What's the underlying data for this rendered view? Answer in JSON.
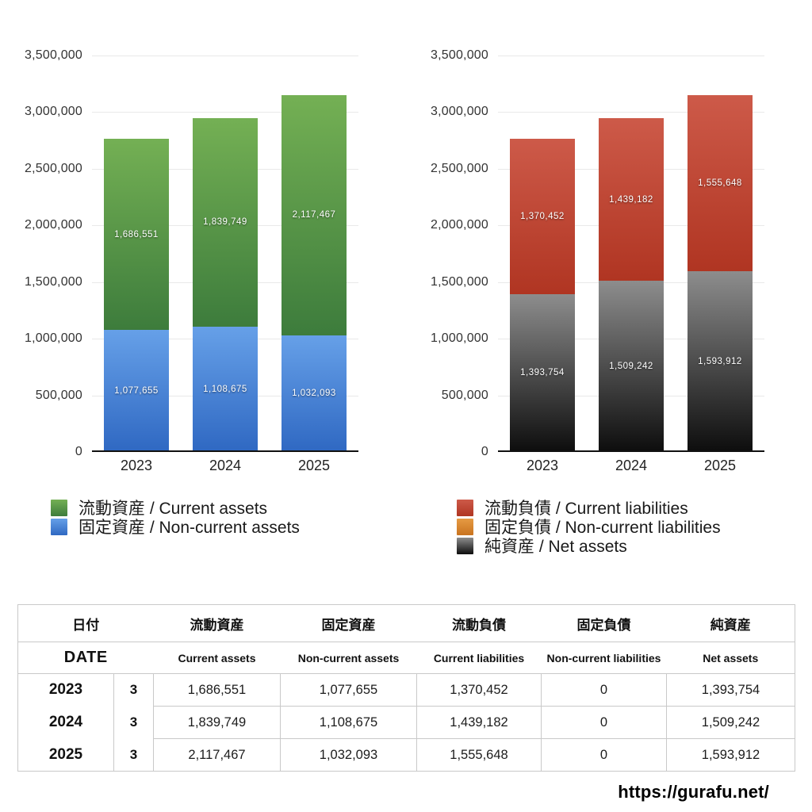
{
  "chart_data": [
    {
      "type": "bar",
      "stacked": true,
      "title": "",
      "categories": [
        "2023",
        "2024",
        "2025"
      ],
      "y_ticks": [
        "0",
        "500,000",
        "1,000,000",
        "1,500,000",
        "2,000,000",
        "2,500,000",
        "3,000,000",
        "3,500,000"
      ],
      "ylim": [
        0,
        3500000
      ],
      "grid": true,
      "legend_position": "bottom-left",
      "series": [
        {
          "name": "流動資産 / Current assets",
          "values": [
            1686551,
            1839749,
            2117467
          ],
          "gradient": [
            "#74b054",
            "#3d7c3c"
          ]
        },
        {
          "name": "固定資産 / Non-current assets",
          "values": [
            1077655,
            1108675,
            1032093
          ],
          "gradient": [
            "#66a0e8",
            "#2f68c2"
          ]
        }
      ]
    },
    {
      "type": "bar",
      "stacked": true,
      "title": "",
      "categories": [
        "2023",
        "2024",
        "2025"
      ],
      "y_ticks": [
        "0",
        "500,000",
        "1,000,000",
        "1,500,000",
        "2,000,000",
        "2,500,000",
        "3,000,000",
        "3,500,000"
      ],
      "ylim": [
        0,
        3500000
      ],
      "grid": true,
      "legend_position": "bottom-left",
      "series": [
        {
          "name": "流動負債 / Current liabilities",
          "values": [
            1370452,
            1439182,
            1555648
          ],
          "gradient": [
            "#cd5a49",
            "#b03522"
          ]
        },
        {
          "name": "固定負債 / Non-current liabilities",
          "values": [
            0,
            0,
            0
          ],
          "gradient": [
            "#e69b43",
            "#c9731f"
          ]
        },
        {
          "name": "純資産 / Net assets",
          "values": [
            1393754,
            1509242,
            1593912
          ],
          "gradient": [
            "#8d8d8d",
            "#0d0d0d"
          ]
        }
      ]
    }
  ],
  "table": {
    "header_jp": [
      "日付",
      "流動資産",
      "固定資産",
      "流動負債",
      "固定負債",
      "純資産"
    ],
    "header_en": [
      "DATE",
      "Current assets",
      "Non-current assets",
      "Current liabilities",
      "Non-current liabilities",
      "Net assets"
    ],
    "rows": [
      {
        "year": "2023",
        "month": "3",
        "values": [
          "1,686,551",
          "1,077,655",
          "1,370,452",
          "0",
          "1,393,754"
        ]
      },
      {
        "year": "2024",
        "month": "3",
        "values": [
          "1,839,749",
          "1,108,675",
          "1,439,182",
          "0",
          "1,509,242"
        ]
      },
      {
        "year": "2025",
        "month": "3",
        "values": [
          "2,117,467",
          "1,032,093",
          "1,555,648",
          "0",
          "1,593,912"
        ]
      }
    ]
  },
  "footer": {
    "url": "https://gurafu.net/"
  }
}
